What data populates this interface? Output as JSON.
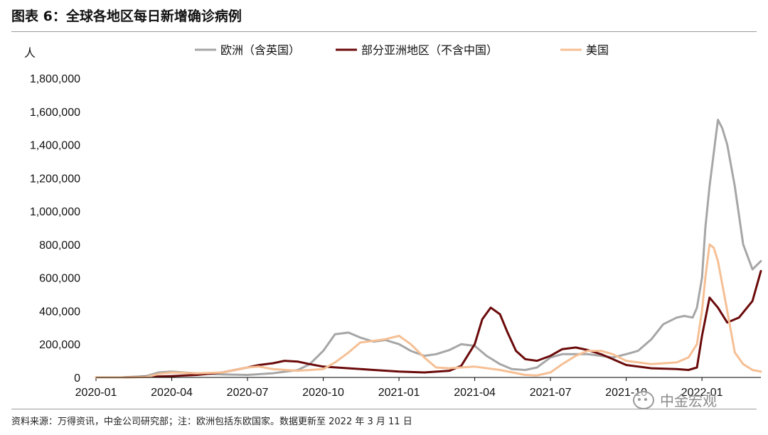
{
  "title": "图表 6：全球各地区每日新增确诊病例",
  "source": "资料来源：万得资讯，中金公司研究部；注：欧洲包括东欧国家。数据更新至 2022 年 3 月 11 日",
  "watermark": "中金宏观",
  "colors": {
    "europe": "#a6a6a6",
    "asia": "#6b0a0a",
    "us": "#f6bf94",
    "axis": "#000000"
  },
  "chart_data": {
    "type": "line",
    "ylabel": "人",
    "ylim": [
      0,
      1800000
    ],
    "y_ticks": [
      {
        "value": 0,
        "label": "0"
      },
      {
        "value": 200000,
        "label": "200,000"
      },
      {
        "value": 400000,
        "label": "400,000"
      },
      {
        "value": 600000,
        "label": "600,000"
      },
      {
        "value": 800000,
        "label": "800,000"
      },
      {
        "value": 1000000,
        "label": "1,000,000"
      },
      {
        "value": 1200000,
        "label": "1,200,000"
      },
      {
        "value": 1400000,
        "label": "1,400,000"
      },
      {
        "value": 1600000,
        "label": "1,600,000"
      },
      {
        "value": 1800000,
        "label": "1,800,000"
      }
    ],
    "xlim": [
      "2020-01",
      "2022-03"
    ],
    "x_ticks": [
      "2020-01",
      "2020-04",
      "2020-07",
      "2020-10",
      "2021-01",
      "2021-04",
      "2021-07",
      "2021-10",
      "2022-01"
    ],
    "legend_position": "top",
    "series": [
      {
        "name": "欧洲（含英国）",
        "color_key": "europe",
        "x": [
          "2020-01",
          "2020-02",
          "2020-03",
          "2020-03-15",
          "2020-04",
          "2020-04-15",
          "2020-05",
          "2020-06",
          "2020-07",
          "2020-08",
          "2020-09",
          "2020-09-15",
          "2020-10",
          "2020-10-15",
          "2020-11",
          "2020-11-15",
          "2020-12",
          "2020-12-15",
          "2021-01",
          "2021-01-15",
          "2021-02",
          "2021-02-15",
          "2021-03",
          "2021-03-15",
          "2021-04",
          "2021-04-15",
          "2021-05",
          "2021-05-15",
          "2021-06",
          "2021-06-15",
          "2021-07",
          "2021-07-15",
          "2021-08",
          "2021-08-15",
          "2021-09",
          "2021-09-15",
          "2021-10",
          "2021-10-15",
          "2021-11",
          "2021-11-15",
          "2021-12",
          "2021-12-10",
          "2021-12-20",
          "2021-12-25",
          "2022-01",
          "2022-01-05",
          "2022-01-10",
          "2022-01-15",
          "2022-01-20",
          "2022-01-25",
          "2022-02",
          "2022-02-10",
          "2022-02-20",
          "2022-03",
          "2022-03-11"
        ],
        "values": [
          0,
          0,
          8000,
          30000,
          35000,
          30000,
          25000,
          18000,
          15000,
          25000,
          45000,
          80000,
          160000,
          260000,
          270000,
          240000,
          215000,
          225000,
          200000,
          160000,
          130000,
          140000,
          165000,
          200000,
          190000,
          130000,
          80000,
          50000,
          45000,
          60000,
          120000,
          140000,
          140000,
          140000,
          130000,
          120000,
          140000,
          160000,
          230000,
          320000,
          360000,
          370000,
          360000,
          420000,
          600000,
          900000,
          1150000,
          1350000,
          1550000,
          1500000,
          1400000,
          1150000,
          800000,
          650000,
          700000
        ]
      },
      {
        "name": "部分亚洲地区（不含中国）",
        "color_key": "asia",
        "x": [
          "2020-01",
          "2020-02",
          "2020-03",
          "2020-04",
          "2020-05",
          "2020-06",
          "2020-07",
          "2020-07-15",
          "2020-08",
          "2020-08-15",
          "2020-09",
          "2020-09-15",
          "2020-10",
          "2020-11",
          "2020-12",
          "2021-01",
          "2021-02",
          "2021-03",
          "2021-03-15",
          "2021-04",
          "2021-04-10",
          "2021-04-20",
          "2021-05",
          "2021-05-10",
          "2021-05-20",
          "2021-06",
          "2021-06-15",
          "2021-07",
          "2021-07-15",
          "2021-08",
          "2021-08-15",
          "2021-09",
          "2021-09-15",
          "2021-10",
          "2021-11",
          "2021-12",
          "2021-12-15",
          "2021-12-25",
          "2022-01",
          "2022-01-10",
          "2022-01-20",
          "2022-02",
          "2022-02-15",
          "2022-03",
          "2022-03-11"
        ],
        "values": [
          0,
          0,
          3000,
          8000,
          15000,
          30000,
          60000,
          75000,
          85000,
          100000,
          95000,
          80000,
          65000,
          55000,
          45000,
          35000,
          30000,
          40000,
          70000,
          200000,
          350000,
          420000,
          380000,
          270000,
          160000,
          110000,
          100000,
          130000,
          170000,
          180000,
          165000,
          140000,
          110000,
          75000,
          55000,
          50000,
          45000,
          60000,
          250000,
          480000,
          420000,
          330000,
          360000,
          460000,
          640000
        ]
      },
      {
        "name": "美国",
        "color_key": "us",
        "x": [
          "2020-01",
          "2020-02",
          "2020-03",
          "2020-03-15",
          "2020-04",
          "2020-05",
          "2020-06",
          "2020-07",
          "2020-07-15",
          "2020-08",
          "2020-09",
          "2020-10",
          "2020-10-15",
          "2020-11",
          "2020-11-15",
          "2020-12",
          "2020-12-15",
          "2021-01",
          "2021-01-15",
          "2021-02",
          "2021-02-15",
          "2021-03",
          "2021-04",
          "2021-05",
          "2021-06",
          "2021-06-15",
          "2021-07",
          "2021-07-15",
          "2021-08",
          "2021-08-15",
          "2021-09",
          "2021-09-15",
          "2021-10",
          "2021-11",
          "2021-12",
          "2021-12-15",
          "2021-12-25",
          "2022-01",
          "2022-01-05",
          "2022-01-10",
          "2022-01-15",
          "2022-01-20",
          "2022-02",
          "2022-02-10",
          "2022-02-20",
          "2022-03",
          "2022-03-11"
        ],
        "values": [
          0,
          0,
          2000,
          20000,
          30000,
          25000,
          30000,
          60000,
          65000,
          50000,
          40000,
          50000,
          90000,
          150000,
          210000,
          220000,
          230000,
          250000,
          200000,
          120000,
          60000,
          55000,
          65000,
          45000,
          15000,
          12000,
          30000,
          80000,
          130000,
          160000,
          160000,
          140000,
          100000,
          80000,
          90000,
          120000,
          200000,
          400000,
          600000,
          800000,
          780000,
          700000,
          400000,
          150000,
          80000,
          45000,
          35000
        ]
      }
    ]
  }
}
